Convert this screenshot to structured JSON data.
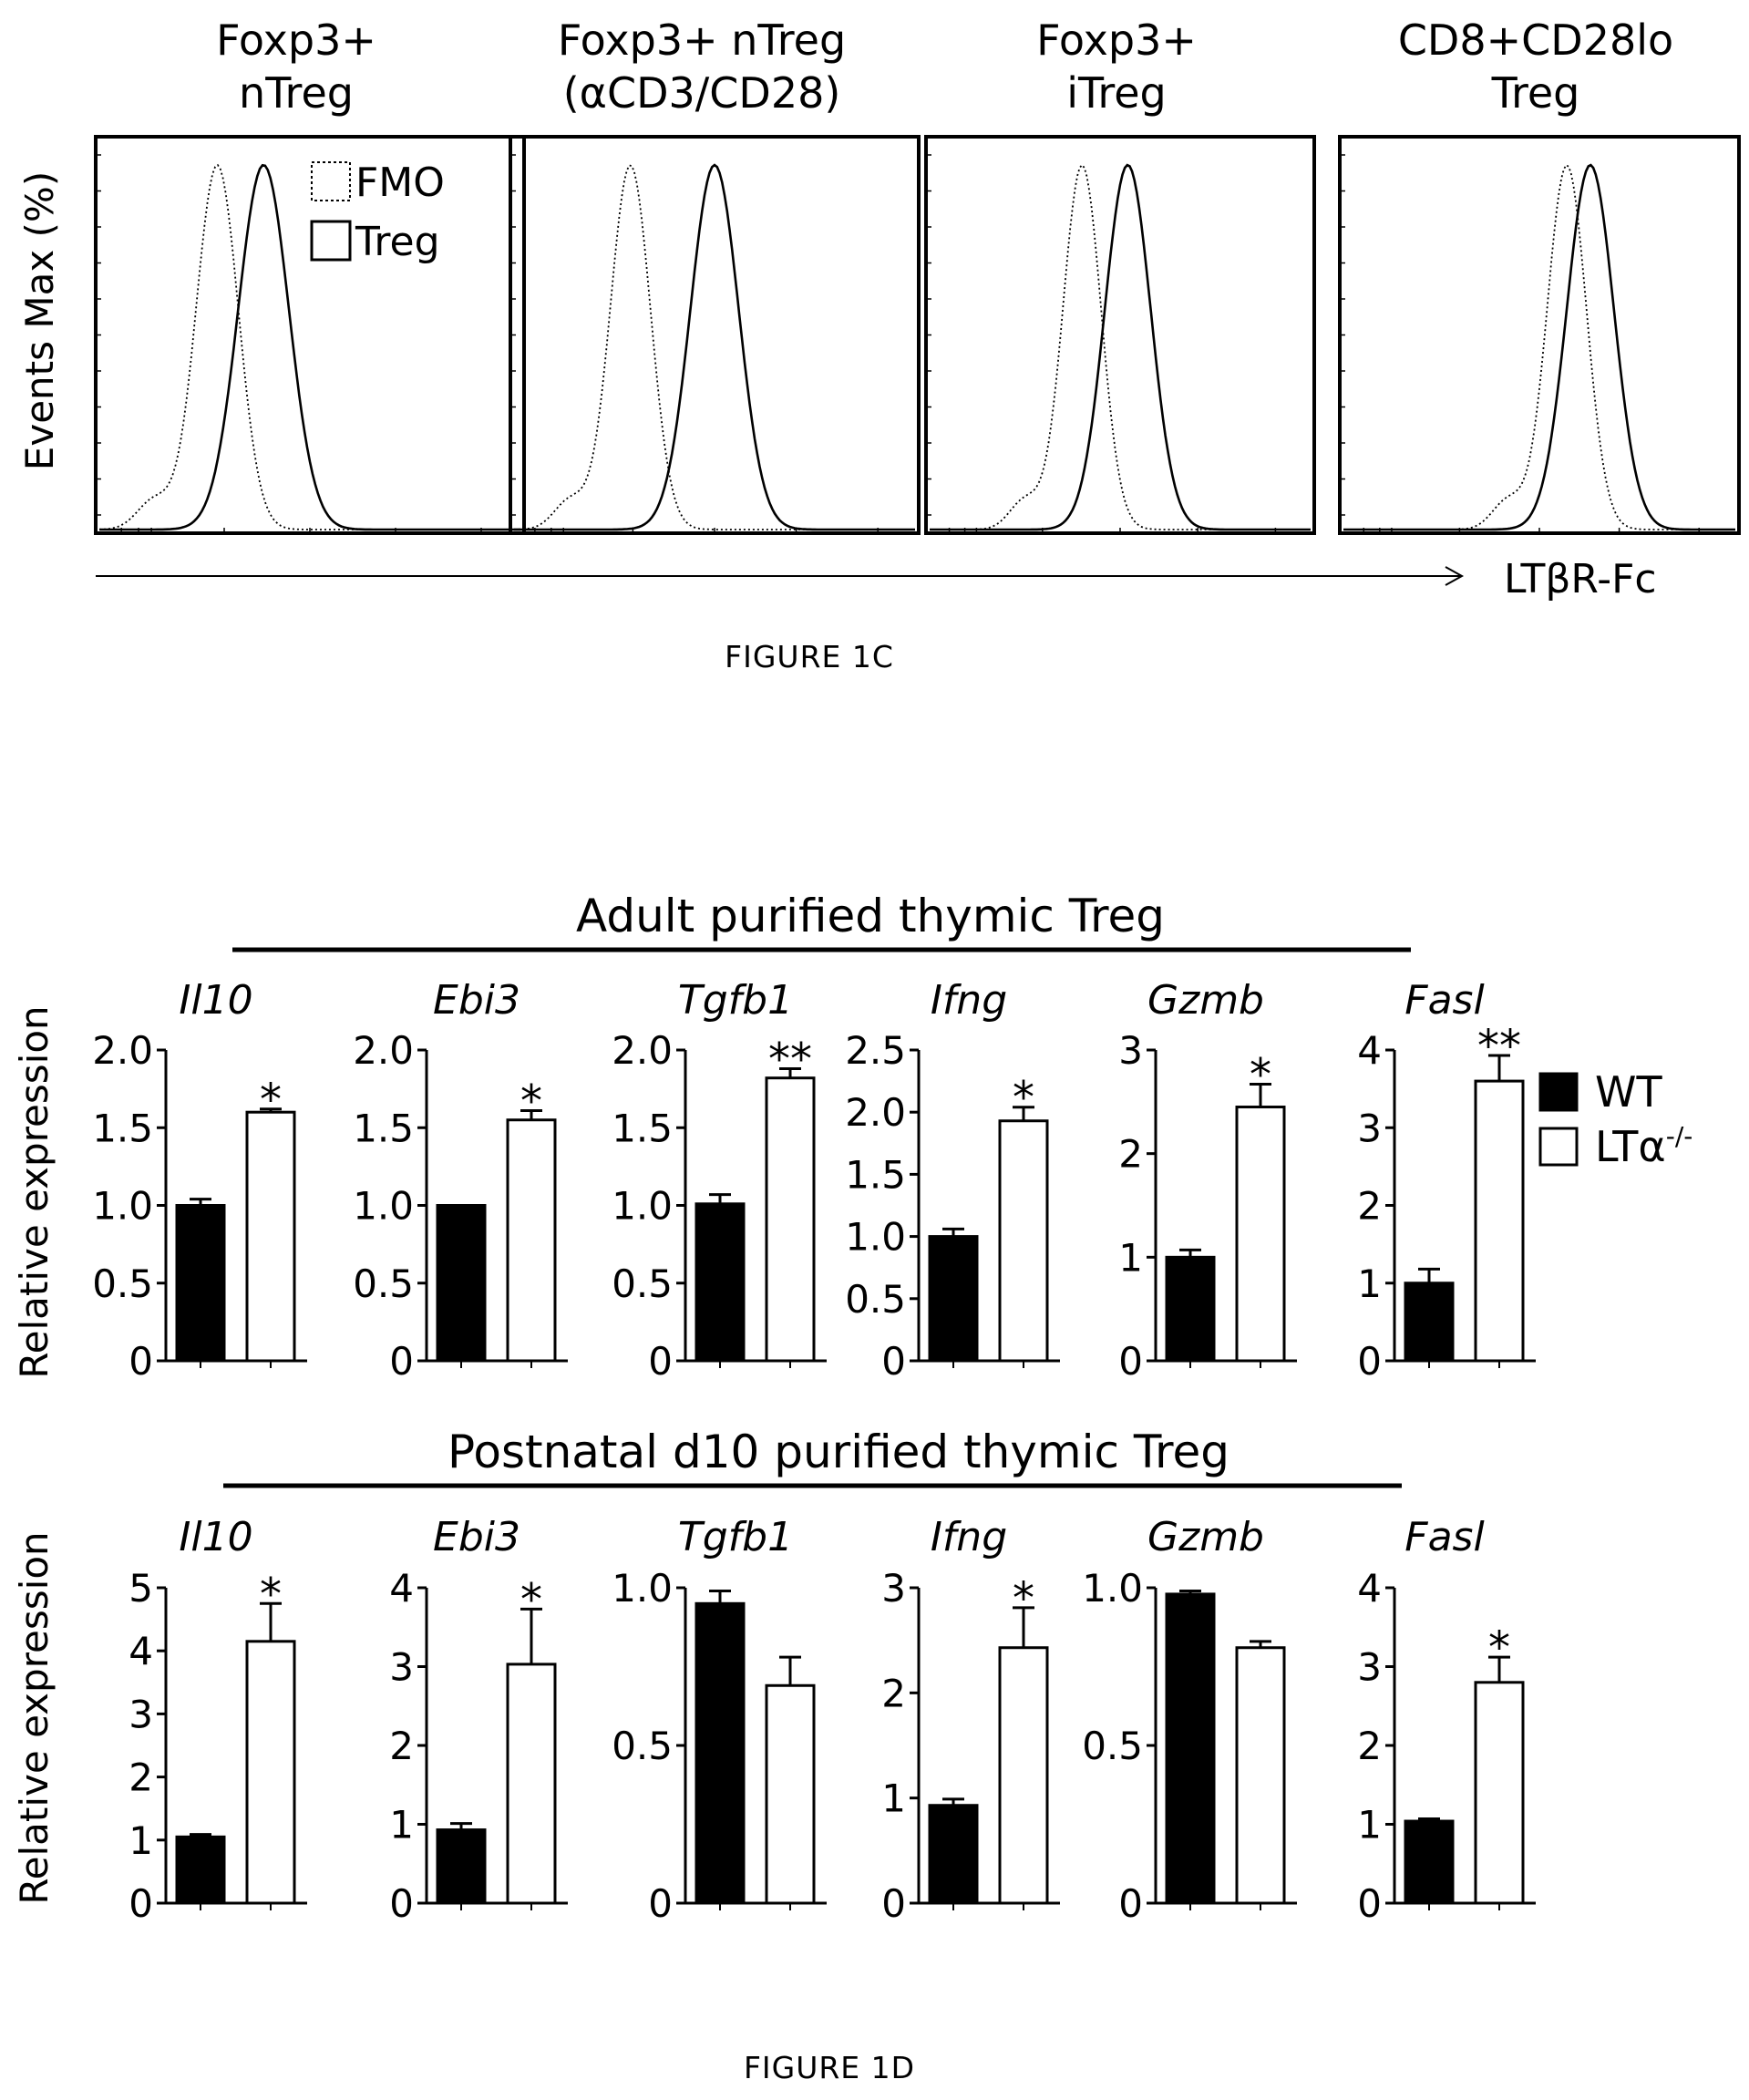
{
  "figure_1c": {
    "caption": "FIGURE 1C",
    "ylabel": "Events Max (%)",
    "xlabel": "LTβR-Fc",
    "legend": {
      "fmo": "FMO",
      "treg": "Treg"
    },
    "panels": [
      {
        "title_line1": "Foxp3+",
        "title_line2": "nTreg"
      },
      {
        "title_line1": "Foxp3+ nTreg",
        "title_line2": "(αCD3/CD28)"
      },
      {
        "title_line1": "Foxp3+",
        "title_line2": "iTreg"
      },
      {
        "title_line1": "CD8+CD28lo",
        "title_line2": "Treg"
      }
    ]
  },
  "figure_1d": {
    "caption": "FIGURE 1D",
    "ylabel": "Relative expression",
    "legend": {
      "wt": "WT",
      "lta_base": "LTα",
      "lta_sup": "-/-",
      "wt_color": "#000000",
      "lta_color": "#ffffff"
    },
    "row_titles": [
      "Adult purified thymic Treg",
      "Postnatal d10 purified thymic Treg"
    ]
  },
  "chart_data": [
    {
      "type": "histogram-overlay",
      "title": "Foxp3+ nTreg",
      "xlabel": "LTβR-Fc",
      "ylabel": "Events Max (%)",
      "series": [
        {
          "name": "FMO",
          "style": "dotted",
          "peak_position": 0.28
        },
        {
          "name": "Treg",
          "style": "solid",
          "peak_position": 0.39
        }
      ]
    },
    {
      "type": "histogram-overlay",
      "title": "Foxp3+ nTreg (αCD3/CD28)",
      "xlabel": "LTβR-Fc",
      "ylabel": "Events Max (%)",
      "series": [
        {
          "name": "FMO",
          "style": "dotted",
          "peak_position": 0.29
        },
        {
          "name": "Treg",
          "style": "solid",
          "peak_position": 0.5
        }
      ]
    },
    {
      "type": "histogram-overlay",
      "title": "Foxp3+ iTreg",
      "xlabel": "LTβR-Fc",
      "ylabel": "Events Max (%)",
      "series": [
        {
          "name": "FMO",
          "style": "dotted",
          "peak_position": 0.4
        },
        {
          "name": "Treg",
          "style": "solid",
          "peak_position": 0.52
        }
      ]
    },
    {
      "type": "histogram-overlay",
      "title": "CD8+CD28lo Treg",
      "xlabel": "LTβR-Fc",
      "ylabel": "Events Max (%)",
      "series": [
        {
          "name": "FMO",
          "style": "dotted",
          "peak_position": 0.57
        },
        {
          "name": "Treg",
          "style": "solid",
          "peak_position": 0.63
        }
      ]
    },
    {
      "type": "bar",
      "group": "Adult purified thymic Treg",
      "title": "Il10",
      "ylabel": "Relative expression",
      "ylim": [
        0,
        2.0
      ],
      "yticks": [
        "0",
        "0.5",
        "1.0",
        "1.5",
        "2.0"
      ],
      "categories": [
        "WT",
        "LTα-/-"
      ],
      "values": [
        1.0,
        1.6
      ],
      "errors": [
        0.04,
        0.02
      ],
      "significance": [
        "",
        "*"
      ]
    },
    {
      "type": "bar",
      "group": "Adult purified thymic Treg",
      "title": "Ebi3",
      "ylabel": "Relative expression",
      "ylim": [
        0,
        2.0
      ],
      "yticks": [
        "0",
        "0.5",
        "1.0",
        "1.5",
        "2.0"
      ],
      "categories": [
        "WT",
        "LTα-/-"
      ],
      "values": [
        1.0,
        1.55
      ],
      "errors": [
        0.0,
        0.06
      ],
      "significance": [
        "",
        "*"
      ]
    },
    {
      "type": "bar",
      "group": "Adult purified thymic Treg",
      "title": "Tgfb1",
      "ylabel": "Relative expression",
      "ylim": [
        0,
        2.0
      ],
      "yticks": [
        "0",
        "0.5",
        "1.0",
        "1.5",
        "2.0"
      ],
      "categories": [
        "WT",
        "LTα-/-"
      ],
      "values": [
        1.01,
        1.82
      ],
      "errors": [
        0.06,
        0.06
      ],
      "significance": [
        "",
        "**"
      ]
    },
    {
      "type": "bar",
      "group": "Adult purified thymic Treg",
      "title": "Ifng",
      "ylabel": "Relative expression",
      "ylim": [
        0,
        2.5
      ],
      "yticks": [
        "0",
        "0.5",
        "1.0",
        "1.5",
        "2.0",
        "2.5"
      ],
      "categories": [
        "WT",
        "LTα-/-"
      ],
      "values": [
        1.0,
        1.93
      ],
      "errors": [
        0.06,
        0.11
      ],
      "significance": [
        "",
        "*"
      ]
    },
    {
      "type": "bar",
      "group": "Adult purified thymic Treg",
      "title": "Gzmb",
      "ylabel": "Relative expression",
      "ylim": [
        0,
        3
      ],
      "yticks": [
        "0",
        "1",
        "2",
        "3"
      ],
      "categories": [
        "WT",
        "LTα-/-"
      ],
      "values": [
        1.0,
        2.45
      ],
      "errors": [
        0.07,
        0.22
      ],
      "significance": [
        "",
        "*"
      ]
    },
    {
      "type": "bar",
      "group": "Adult purified thymic Treg",
      "title": "Fasl",
      "ylabel": "Relative expression",
      "ylim": [
        0,
        4
      ],
      "yticks": [
        "0",
        "1",
        "2",
        "3",
        "4"
      ],
      "categories": [
        "WT",
        "LTα-/-"
      ],
      "values": [
        1.0,
        3.6
      ],
      "errors": [
        0.18,
        0.33
      ],
      "significance": [
        "",
        "**"
      ]
    },
    {
      "type": "bar",
      "group": "Postnatal d10 purified thymic Treg",
      "title": "Il10",
      "ylabel": "Relative expression",
      "ylim": [
        0,
        5
      ],
      "yticks": [
        "0",
        "1",
        "2",
        "3",
        "4",
        "5"
      ],
      "categories": [
        "WT",
        "LTα-/-"
      ],
      "values": [
        1.05,
        4.15
      ],
      "errors": [
        0.04,
        0.6
      ],
      "significance": [
        "",
        "*"
      ]
    },
    {
      "type": "bar",
      "group": "Postnatal d10 purified thymic Treg",
      "title": "Ebi3",
      "ylabel": "Relative expression",
      "ylim": [
        0,
        4
      ],
      "yticks": [
        "0",
        "1",
        "2",
        "3",
        "4"
      ],
      "categories": [
        "WT",
        "LTα-/-"
      ],
      "values": [
        0.93,
        3.03
      ],
      "errors": [
        0.08,
        0.7
      ],
      "significance": [
        "",
        "*"
      ]
    },
    {
      "type": "bar",
      "group": "Postnatal d10 purified thymic Treg",
      "title": "Tgfb1",
      "ylabel": "Relative expression",
      "ylim": [
        0,
        1.0
      ],
      "yticks": [
        "0",
        "0.5",
        "1.0"
      ],
      "categories": [
        "WT",
        "LTα-/-"
      ],
      "values": [
        0.95,
        0.69
      ],
      "errors": [
        0.04,
        0.09
      ],
      "significance": [
        "",
        ""
      ]
    },
    {
      "type": "bar",
      "group": "Postnatal d10 purified thymic Treg",
      "title": "Ifng",
      "ylabel": "Relative expression",
      "ylim": [
        0,
        3
      ],
      "yticks": [
        "0",
        "1",
        "2",
        "3"
      ],
      "categories": [
        "WT",
        "LTα-/-"
      ],
      "values": [
        0.93,
        2.43
      ],
      "errors": [
        0.06,
        0.38
      ],
      "significance": [
        "",
        "*"
      ]
    },
    {
      "type": "bar",
      "group": "Postnatal d10 purified thymic Treg",
      "title": "Gzmb",
      "ylabel": "Relative expression",
      "ylim": [
        0,
        1.0
      ],
      "yticks": [
        "0",
        "0.5",
        "1.0"
      ],
      "categories": [
        "WT",
        "LTα-/-"
      ],
      "values": [
        0.98,
        0.81
      ],
      "errors": [
        0.01,
        0.02
      ],
      "significance": [
        "",
        ""
      ]
    },
    {
      "type": "bar",
      "group": "Postnatal d10 purified thymic Treg",
      "title": "Fasl",
      "ylabel": "Relative expression",
      "ylim": [
        0,
        4
      ],
      "yticks": [
        "0",
        "1",
        "2",
        "3",
        "4"
      ],
      "categories": [
        "WT",
        "LTα-/-"
      ],
      "values": [
        1.04,
        2.8
      ],
      "errors": [
        0.03,
        0.32
      ],
      "significance": [
        "",
        "*"
      ]
    }
  ]
}
